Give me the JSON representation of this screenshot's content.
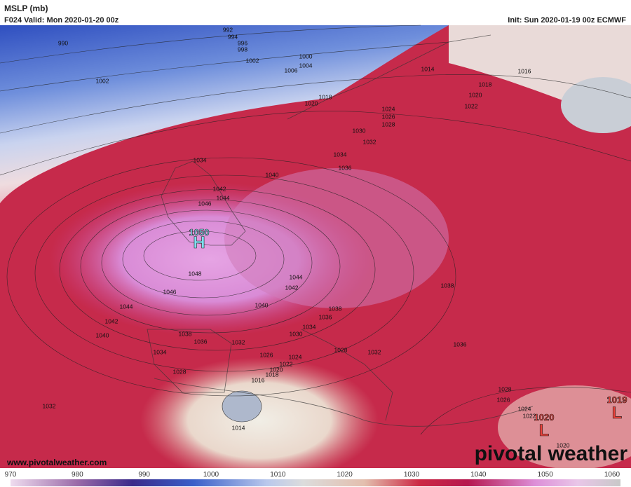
{
  "header": {
    "title": "MSLP (mb)",
    "valid": "F024 Valid: Mon 2020-01-20 00z",
    "init": "Init: Sun 2020-01-19 00z ECMWF"
  },
  "contour_labels": [
    "992",
    "994",
    "996",
    "998",
    "990",
    "1002",
    "1000",
    "1004",
    "1006",
    "1002",
    "1014",
    "1016",
    "1018",
    "1020",
    "1022",
    "1018",
    "1020",
    "1024",
    "1026",
    "1028",
    "1030",
    "1032",
    "1034",
    "1036",
    "1034",
    "1040",
    "1042",
    "1044",
    "1046",
    "1048",
    "1046",
    "1044",
    "1042",
    "1040",
    "1038",
    "1036",
    "1034",
    "1032",
    "1030",
    "1028",
    "1026",
    "1024",
    "1022",
    "1020",
    "1018",
    "1016",
    "1014",
    "1032",
    "1028",
    "1044",
    "1042",
    "1040",
    "1038",
    "1036",
    "1034",
    "1038",
    "1036",
    "1032",
    "1028",
    "1026",
    "1024",
    "1022",
    "1020"
  ],
  "pressure_centers": [
    {
      "value": "1050",
      "label": "H"
    },
    {
      "value": "1020",
      "label": "L"
    },
    {
      "value": "1019",
      "label": "L"
    }
  ],
  "footer": {
    "url": "www.pivotalweather.com",
    "brand": "pivotal weather"
  },
  "colorbar": {
    "ticks": [
      970,
      980,
      990,
      1000,
      1010,
      1020,
      1030,
      1040,
      1050,
      1060
    ]
  }
}
